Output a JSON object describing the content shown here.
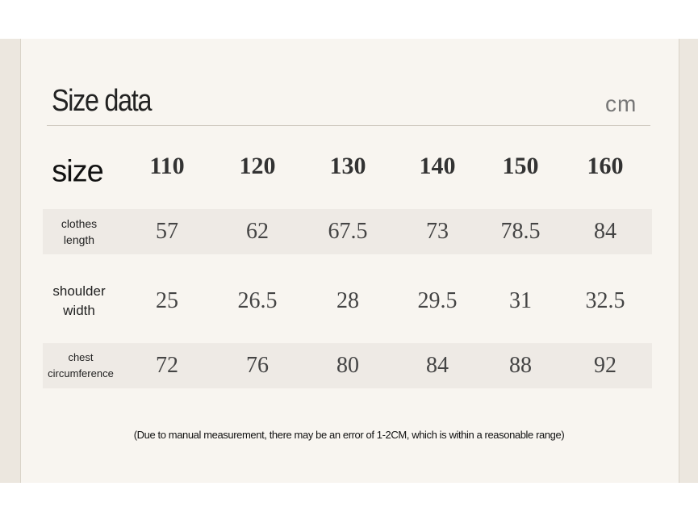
{
  "header": {
    "title": "Size data",
    "unit": "cm"
  },
  "table": {
    "header": [
      "size",
      110,
      120,
      130,
      140,
      150,
      160
    ],
    "rows": [
      [
        "clothes length",
        57,
        62,
        67.5,
        73,
        78.5,
        84
      ],
      [
        "shoulder width",
        25,
        26.5,
        28,
        29.5,
        31,
        32.5
      ],
      [
        "chest circumference",
        72,
        76,
        80,
        84,
        88,
        92
      ]
    ]
  },
  "note": "(Due to manual measurement, there may be an error of 1-2CM, which is within a reasonable range)"
}
